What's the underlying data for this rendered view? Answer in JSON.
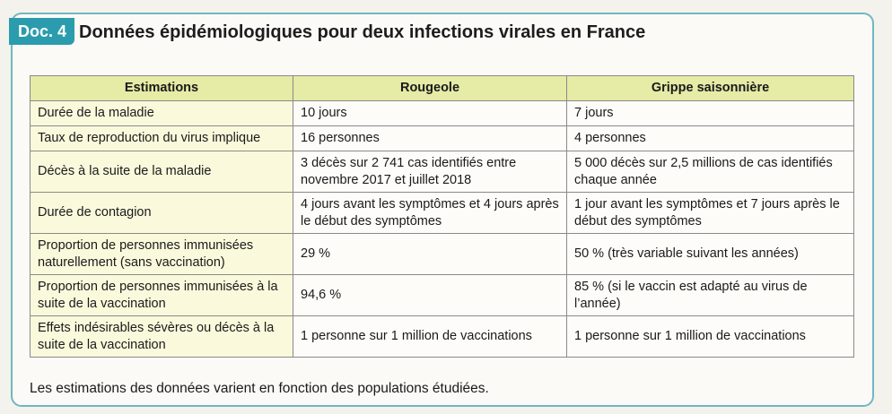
{
  "doc": {
    "tag": "Doc. 4",
    "title": "Données épidémiologiques pour deux infections virales en France"
  },
  "table": {
    "headers": [
      "Estimations",
      "Rougeole",
      "Grippe saisonnière"
    ],
    "rows": [
      {
        "label": "Durée de la maladie",
        "rougeole": "10 jours",
        "grippe": "7 jours"
      },
      {
        "label": "Taux de reproduction du virus implique",
        "rougeole": "16 personnes",
        "grippe": "4 personnes"
      },
      {
        "label": "Décès à la suite de la maladie",
        "rougeole": "3 décès sur 2 741 cas identifiés entre novembre 2017 et juillet 2018",
        "grippe": "5 000 décès sur 2,5 millions de cas identifiés chaque année"
      },
      {
        "label": "Durée de contagion",
        "rougeole": "4 jours avant les symptômes et 4 jours après le début des symptômes",
        "grippe": "1 jour avant les symptômes et 7 jours après le début des symptômes"
      },
      {
        "label": "Proportion de personnes immunisées naturellement (sans vaccination)",
        "rougeole": "29 %",
        "grippe": "50 % (très variable suivant les années)"
      },
      {
        "label": "Proportion de personnes immunisées à la suite de la vaccination",
        "rougeole": "94,6 %",
        "grippe": "85 % (si le vaccin est adapté au virus de l’année)"
      },
      {
        "label": "Effets indésirables sévères ou décès à la suite de la vaccination",
        "rougeole": "1 personne sur 1 million de vaccinations",
        "grippe": "1 personne sur 1 million de vaccinations"
      }
    ]
  },
  "footnote": "Les estimations des données varient en fonction des populations étudiées.",
  "colors": {
    "tag": "#2a9cad",
    "border": "#6fb7c4",
    "header_bg": "#e6eba6",
    "label_bg": "#fbf9dc"
  }
}
